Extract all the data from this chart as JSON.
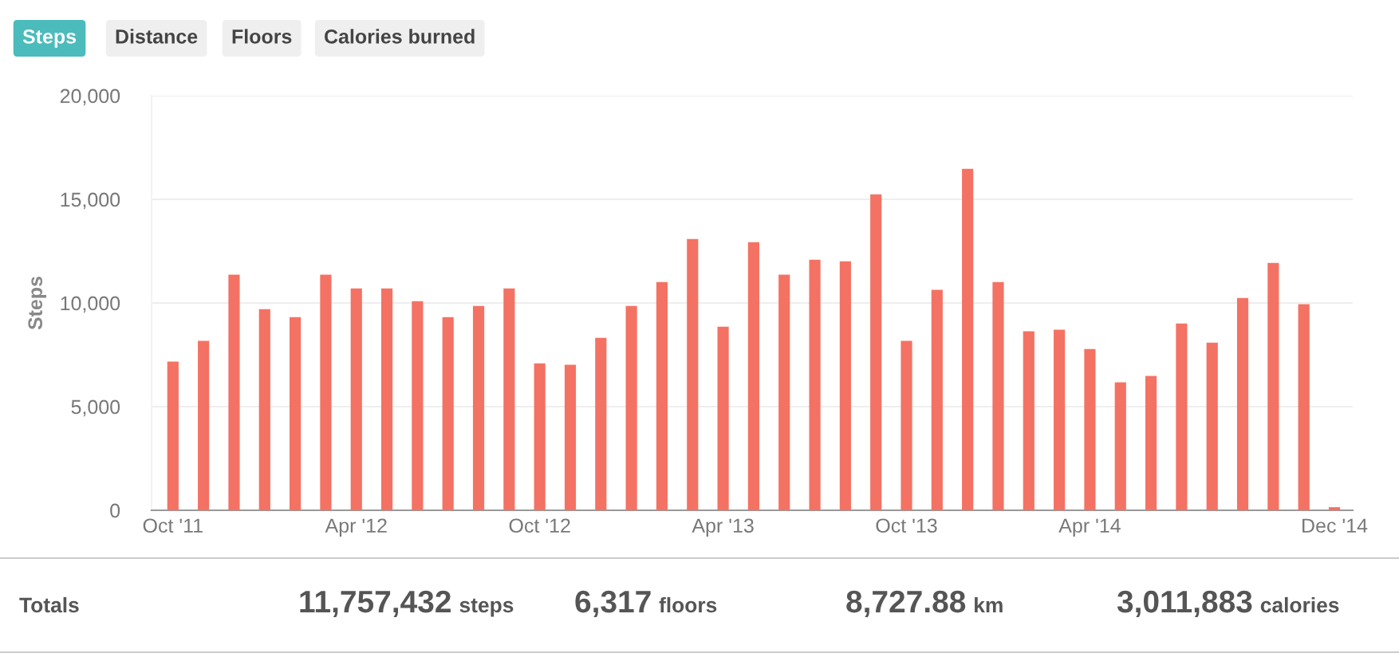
{
  "chart_data": {
    "type": "bar",
    "ylabel": "Steps",
    "categories": [
      "Oct '11",
      null,
      null,
      null,
      null,
      null,
      "Apr '12",
      null,
      null,
      null,
      null,
      null,
      "Oct '12",
      null,
      null,
      null,
      null,
      null,
      "Apr '13",
      null,
      null,
      null,
      null,
      null,
      "Oct '13",
      null,
      null,
      null,
      null,
      null,
      "Apr '14",
      null,
      null,
      null,
      null,
      null,
      null,
      null,
      "Dec '14"
    ],
    "values": [
      7170,
      8170,
      11370,
      9700,
      9320,
      11370,
      10700,
      10700,
      10090,
      9320,
      9860,
      10700,
      7090,
      7020,
      8320,
      9860,
      11010,
      13090,
      8860,
      12930,
      11370,
      12090,
      12010,
      15240,
      8170,
      10630,
      16470,
      11010,
      8630,
      8710,
      7780,
      6170,
      6480,
      9010,
      8090,
      10240,
      11930,
      9940,
      150
    ],
    "color": "#f47263",
    "ylim": [
      0,
      20000
    ],
    "yticks": [
      0,
      {
        "value": 5000,
        "label": "5,000"
      },
      {
        "value": 10000,
        "label": "10,000"
      },
      {
        "value": 15000,
        "label": "15,000"
      },
      {
        "value": 20000,
        "label": "20,000"
      }
    ],
    "grid": "y",
    "annotations": [
      "Steps",
      "Distance",
      "Floors",
      "Calories burned",
      "Totals",
      "11,757,432",
      "steps",
      "6,317",
      "floors",
      "8,727.88",
      "km",
      "3,011,883",
      "calories"
    ]
  }
}
